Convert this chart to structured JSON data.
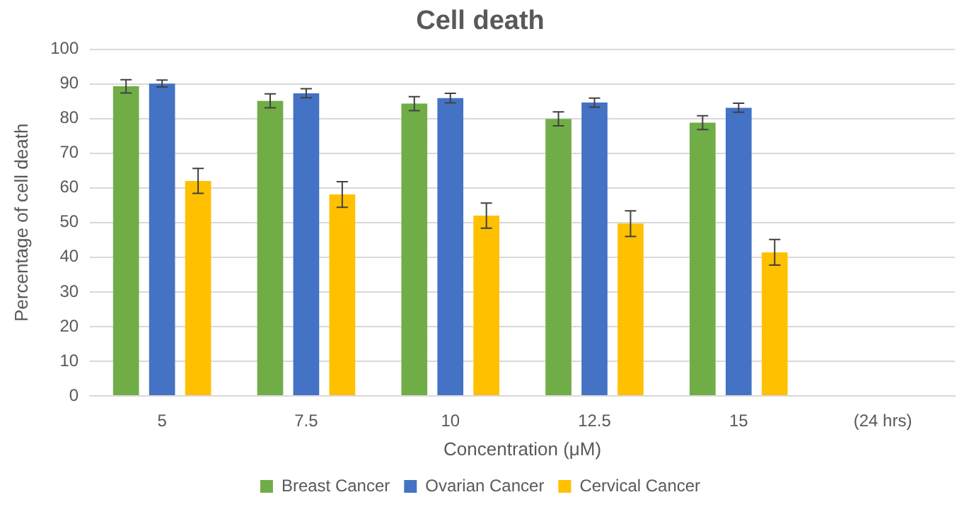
{
  "chart_data": {
    "type": "bar",
    "title": "Cell death",
    "xlabel": "Concentration (μM)",
    "ylabel": "Percentage of cell death",
    "categories": [
      "5",
      "7.5",
      "10",
      "12.5",
      "15",
      "(24 hrs)"
    ],
    "series": [
      {
        "name": "Breast Cancer",
        "color": "#70ad47",
        "values": [
          89.3,
          85.1,
          84.3,
          79.9,
          78.8,
          null
        ],
        "errors": [
          1.9,
          2,
          2,
          2,
          2,
          null
        ]
      },
      {
        "name": "Ovarian Cancer",
        "color": "#4472c4",
        "values": [
          90.1,
          87.3,
          85.9,
          84.6,
          83.1,
          null
        ],
        "errors": [
          1,
          1.3,
          1.4,
          1.3,
          1.3,
          null
        ]
      },
      {
        "name": "Cervical Cancer",
        "color": "#ffc000",
        "values": [
          62,
          58.1,
          52,
          49.7,
          41.4,
          null
        ],
        "errors": [
          3.6,
          3.7,
          3.6,
          3.7,
          3.7,
          null
        ]
      }
    ],
    "ylim": [
      0,
      100
    ],
    "yticks": [
      0,
      10,
      20,
      30,
      40,
      50,
      60,
      70,
      80,
      90,
      100
    ],
    "grid": "y",
    "legend": "bottom"
  }
}
